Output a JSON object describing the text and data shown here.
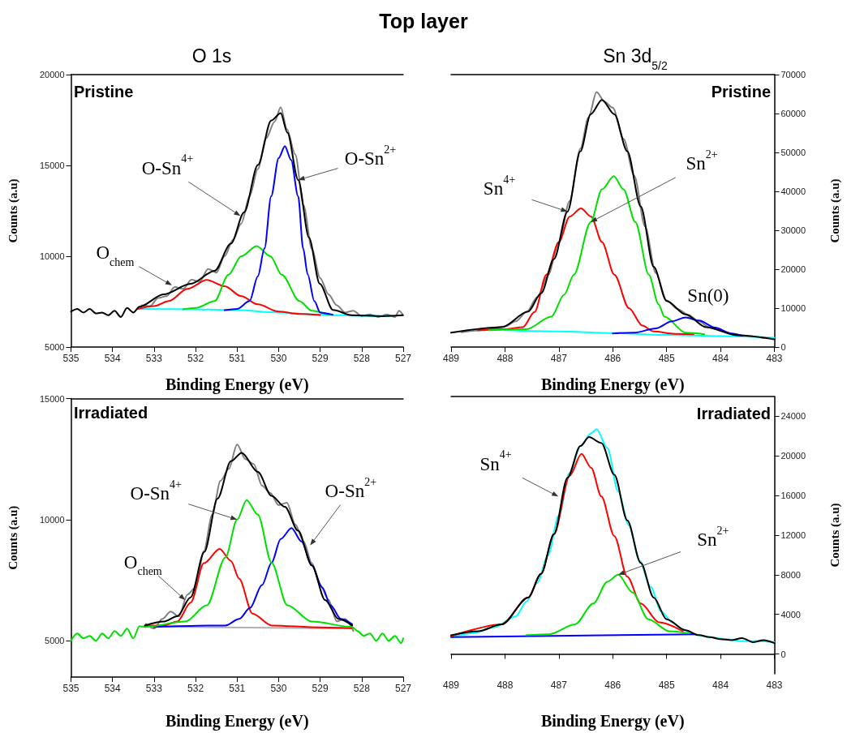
{
  "chart_data": [
    {
      "type": "line",
      "title": "Top layer",
      "subtitle": "O 1s",
      "xlabel": "Binding Energy (eV)",
      "ylabel": "Counts (a.u)",
      "marker": "none",
      "xlim": [
        535,
        527
      ],
      "xticks": [
        535,
        534,
        533,
        532,
        531,
        530,
        529,
        528,
        527
      ],
      "ylim": [
        5000,
        20000
      ],
      "yticks": [
        5000,
        10000,
        15000,
        20000
      ],
      "annotations": [
        "Pristine",
        {
          "text": "O$_{chem}$",
          "x": 532.57,
          "y": 8400
        },
        {
          "text": "O-Sn$^{4+}$",
          "x": 530.92,
          "y": 12220
        },
        {
          "text": "O-Sn$^{2+}$",
          "x": 529.53,
          "y": 14200
        }
      ],
      "series": [
        {
          "color": "#808080",
          "x": [
            533.3,
            533.1,
            532.9,
            532.7,
            532.5,
            532.3,
            532.1,
            531.9,
            531.7,
            531.5,
            531.3,
            531.1,
            530.9,
            530.7,
            530.5,
            530.3,
            530.1,
            529.95,
            529.8,
            529.6,
            529.4,
            529.2,
            529,
            528.8,
            528.6,
            528.4,
            528.2,
            528,
            527.8,
            527.6,
            527.4,
            527.2,
            527.1,
            527
          ],
          "values": [
            7300,
            7250,
            7700,
            7800,
            8300,
            8200,
            8700,
            8600,
            9300,
            9100,
            10000,
            10900,
            11800,
            13300,
            14800,
            16500,
            17400,
            18200,
            17000,
            15600,
            12800,
            10400,
            8800,
            7900,
            7300,
            6900,
            7000,
            6700,
            6800,
            6650,
            6800,
            6650,
            7000,
            6750
          ]
        },
        {
          "color": "#00ffff",
          "x": [
            533.4,
            532,
            531,
            530,
            529,
            528,
            527.3
          ],
          "values": [
            7100,
            7080,
            7030,
            6900,
            6780,
            6720,
            6700
          ]
        },
        {
          "color": "#ff0000",
          "x": [
            533.4,
            533,
            532.64,
            532.2,
            531.73,
            531.3,
            530.9,
            530.5,
            530,
            529.5,
            529
          ],
          "values": [
            7100,
            7250,
            7530,
            8200,
            8690,
            8350,
            7800,
            7350,
            6950,
            6820,
            6760
          ]
        },
        {
          "color": "#00e000",
          "x": [
            532.3,
            532,
            531.54,
            531.21,
            530.9,
            530.53,
            530.2,
            529.92,
            529.5,
            529.2,
            528.8
          ],
          "values": [
            7080,
            7150,
            7530,
            8970,
            10000,
            10560,
            10000,
            8970,
            7530,
            7000,
            6780
          ]
        },
        {
          "color": "#0000ff",
          "x": [
            531.3,
            531,
            530.7,
            530.5,
            530.34,
            530.18,
            530,
            529.85,
            529.7,
            529.53,
            529.41,
            529.3,
            529.14,
            529,
            528.7
          ],
          "values": [
            7030,
            7100,
            7530,
            8900,
            10430,
            13300,
            15400,
            16060,
            15300,
            13300,
            10430,
            9000,
            7530,
            6900,
            6780
          ]
        },
        {
          "color": "#000000",
          "x": [
            535,
            534.85,
            534.7,
            534.55,
            534.4,
            534.25,
            534.1,
            533.95,
            533.8,
            533.65,
            533.5,
            533.35,
            532.77,
            532.12,
            531.54,
            531.15,
            530.83,
            530.5,
            530.18,
            529.95,
            529.79,
            529.53,
            529.27,
            529.01,
            528.69,
            528.24,
            527.5,
            527.01
          ],
          "values": [
            6950,
            7100,
            6900,
            7100,
            6850,
            6900,
            6750,
            7000,
            6650,
            7150,
            6900,
            7220,
            7900,
            8480,
            9200,
            10690,
            12420,
            15020,
            17470,
            17880,
            16810,
            14200,
            11030,
            8480,
            7040,
            6750,
            6700,
            6750
          ]
        }
      ]
    },
    {
      "type": "line",
      "subtitle": "Sn 3d$_{5/2}$",
      "xlabel": "Binding Energy (eV)",
      "ylabel": "Counts (a.u)",
      "marker": "none",
      "xlim": [
        489,
        483
      ],
      "xticks": [
        489,
        488,
        487,
        486,
        485,
        484,
        483
      ],
      "ylim": [
        0,
        70000
      ],
      "yticks": [
        0,
        10000,
        20000,
        30000,
        40000,
        50000,
        60000,
        70000
      ],
      "annotations": [
        "Pristine",
        {
          "text": "Sn$^{4+}$",
          "x": 486.84,
          "y": 34800
        },
        {
          "text": "Sn$^{2+}$",
          "x": 486.41,
          "y": 32100
        },
        {
          "text": "Sn(0)",
          "x": 484.65,
          "y": 7600
        }
      ],
      "series": [
        {
          "color": "#808080",
          "x": [
            488.8,
            488.4,
            488,
            487.8,
            487.6,
            487.4,
            487.2,
            487,
            486.8,
            486.6,
            486.45,
            486.3,
            486.15,
            486,
            485.8,
            485.6,
            485.4,
            485.2,
            485,
            484.8,
            484.6,
            484.4,
            484.2,
            484,
            483.8,
            483.5,
            483.2
          ],
          "values": [
            3800,
            4300,
            5300,
            6600,
            9000,
            12800,
            18500,
            27000,
            37500,
            51000,
            59000,
            65500,
            63000,
            61500,
            53500,
            44000,
            31000,
            19000,
            12000,
            9800,
            8300,
            6600,
            5000,
            4200,
            3400,
            2800,
            2300
          ]
        },
        {
          "color": "#00ffff",
          "x": [
            488,
            487,
            486,
            485,
            484,
            483
          ],
          "values": [
            4300,
            4000,
            3600,
            3100,
            2800,
            2400
          ]
        },
        {
          "color": "#ff0000",
          "x": [
            488.5,
            488,
            487.67,
            487.45,
            487.23,
            487,
            486.8,
            486.59,
            486.4,
            486.2,
            485.97,
            485.7,
            485.45,
            485.24,
            484.85,
            484.5
          ],
          "values": [
            4300,
            4600,
            5100,
            9000,
            18600,
            27000,
            33500,
            35600,
            33500,
            27000,
            18600,
            10000,
            5500,
            4000,
            3400,
            3300
          ]
        },
        {
          "color": "#00e000",
          "x": [
            488.3,
            487.6,
            487.14,
            486.9,
            486.72,
            486.41,
            486.2,
            485.98,
            485.8,
            485.58,
            485.33,
            485.15,
            485.04,
            484.65,
            484.3
          ],
          "values": [
            4300,
            4600,
            7800,
            13500,
            18600,
            32100,
            40500,
            43900,
            40500,
            32100,
            18600,
            11000,
            7800,
            3700,
            3300
          ]
        },
        {
          "color": "#0000ff",
          "x": [
            486,
            485.6,
            485.2,
            484.9,
            484.65,
            484.4,
            484.1,
            483.8,
            483.6
          ],
          "values": [
            3500,
            3700,
            4800,
            6600,
            7600,
            6800,
            5000,
            3500,
            2900
          ]
        },
        {
          "color": "#000000",
          "x": [
            489,
            488.06,
            487.57,
            487.33,
            487.09,
            486.84,
            486.6,
            486.41,
            486.2,
            485.97,
            485.73,
            485.48,
            485.24,
            485,
            484.65,
            484.27,
            483.68,
            483
          ],
          "values": [
            3700,
            5100,
            9100,
            13800,
            22600,
            34800,
            50300,
            59800,
            63500,
            59800,
            50300,
            36100,
            20600,
            11800,
            8400,
            5100,
            3000,
            2000
          ]
        }
      ]
    },
    {
      "type": "line",
      "xlabel": "Binding Energy (eV)",
      "ylabel": "Counts (a.u)",
      "marker": "none",
      "xlim": [
        535,
        527
      ],
      "xticks": [
        535,
        534,
        533,
        532,
        531,
        530,
        529,
        528,
        527
      ],
      "ylim": [
        3500,
        15000
      ],
      "yticks": [
        5000,
        10000,
        15000
      ],
      "annotations": [
        "Irradiated",
        {
          "text": "O$_{chem}$",
          "x": 532.25,
          "y": 6680
        },
        {
          "text": "O-Sn$^{4+}$",
          "x": 531,
          "y": 10000
        },
        {
          "text": "O-Sn$^{2+}$",
          "x": 529.24,
          "y": 8940
        }
      ],
      "series": [
        {
          "color": "#808080",
          "x": [
            533.2,
            533,
            532.8,
            532.6,
            532.4,
            532.2,
            532,
            531.8,
            531.6,
            531.4,
            531.2,
            531,
            530.8,
            530.6,
            530.4,
            530.2,
            530,
            529.8,
            529.6,
            529.4,
            529.2,
            529,
            528.8,
            528.6,
            528.4,
            528.2
          ],
          "values": [
            5700,
            5500,
            5900,
            6200,
            6000,
            6900,
            7200,
            8700,
            10200,
            11600,
            12100,
            13100,
            12500,
            12300,
            11400,
            11100,
            10600,
            10700,
            9800,
            9100,
            8200,
            7300,
            6700,
            5800,
            5900,
            5400
          ]
        },
        {
          "color": "#b0b0b0",
          "x": [
            533.2,
            528.2
          ],
          "values": [
            5580,
            5500
          ]
        },
        {
          "color": "#ff0000",
          "x": [
            533.22,
            532.77,
            532.44,
            532.12,
            531.8,
            531.42,
            531.15,
            530.95,
            530.63,
            530.17,
            529,
            528.23
          ],
          "values": [
            5630,
            5630,
            5790,
            6570,
            8200,
            8790,
            8300,
            7560,
            6120,
            5630,
            5550,
            5520
          ]
        },
        {
          "color": "#0000ff",
          "x": [
            533,
            531.28,
            530.95,
            530.69,
            530.4,
            530.17,
            529.95,
            529.69,
            529.45,
            529.2,
            528.95,
            528.75,
            528.5,
            528.23
          ],
          "values": [
            5570,
            5630,
            5900,
            6350,
            7300,
            8220,
            9200,
            9650,
            9100,
            8110,
            7200,
            6460,
            5900,
            5680
          ]
        },
        {
          "color": "#00e000",
          "x": [
            535,
            534.85,
            534.7,
            534.55,
            534.4,
            534.25,
            534.1,
            533.95,
            533.8,
            533.65,
            533.5,
            533.35,
            533.22,
            532.25,
            531.73,
            531.28,
            531,
            530.77,
            530.5,
            530.17,
            529.79,
            529.2,
            528.23,
            528.1,
            527.95,
            527.8,
            527.65,
            527.5,
            527.35,
            527.2,
            527.05,
            527
          ],
          "values": [
            5000,
            5300,
            5100,
            5200,
            5000,
            5300,
            5100,
            5400,
            5200,
            5500,
            5100,
            5600,
            5570,
            5790,
            6460,
            8440,
            10000,
            10810,
            10200,
            8220,
            6460,
            5790,
            5570,
            5400,
            5200,
            5300,
            5000,
            5300,
            5000,
            5200,
            4900,
            5100
          ]
        },
        {
          "color": "#000000",
          "x": [
            533.22,
            532.77,
            532.44,
            532.12,
            531.79,
            531.47,
            531.15,
            530.89,
            530.5,
            530.17,
            529.85,
            529.53,
            529.2,
            528.88,
            528.56,
            528.23
          ],
          "values": [
            5630,
            5790,
            6010,
            6790,
            8660,
            10870,
            12410,
            12760,
            11970,
            10980,
            10530,
            9540,
            8110,
            6680,
            5900,
            5630
          ]
        }
      ]
    },
    {
      "type": "line",
      "xlabel": "Binding Energy (eV)",
      "ylabel": "Counts (a.u)",
      "marker": "none",
      "xlim": [
        489,
        483
      ],
      "xticks": [
        489,
        488,
        487,
        486,
        485,
        484,
        483
      ],
      "ylim": [
        -2000,
        26000
      ],
      "yticks": [
        0,
        4000,
        8000,
        12000,
        16000,
        20000,
        24000
      ],
      "annotations": [
        "Irradiated",
        {
          "text": "Sn$^{4+}$",
          "x": 487.01,
          "y": 15900
        },
        {
          "text": "Sn$^{2+}$",
          "x": 485.9,
          "y": 8000
        }
      ],
      "series": [
        {
          "color": "#00ffff",
          "x": [
            489,
            488.6,
            488.2,
            487.8,
            487.6,
            487.4,
            487.2,
            487,
            486.8,
            486.6,
            486.4,
            486.3,
            486.1,
            485.9,
            485.7,
            485.5,
            485.3,
            485.1,
            484.9,
            484.7,
            484.5,
            484.2,
            483.9,
            483.6,
            483.3,
            483
          ],
          "values": [
            1700,
            2100,
            2700,
            3800,
            5300,
            7200,
            10000,
            14000,
            18300,
            21000,
            22300,
            22700,
            20800,
            16400,
            13000,
            9400,
            6800,
            4300,
            3200,
            2500,
            2000,
            1700,
            1500,
            1300,
            1300,
            1200
          ]
        },
        {
          "color": "#0000ff",
          "x": [
            489,
            484.46
          ],
          "values": [
            1700,
            2000
          ]
        },
        {
          "color": "#ff0000",
          "x": [
            489,
            488.06,
            487.57,
            487.33,
            487.09,
            486.8,
            486.58,
            486.4,
            486.21,
            485.97,
            485.73,
            485.48,
            485.14,
            484.7
          ],
          "values": [
            1800,
            3000,
            5700,
            8100,
            12100,
            18000,
            20200,
            18800,
            15900,
            11900,
            7800,
            5100,
            3200,
            2300
          ]
        },
        {
          "color": "#00e000",
          "x": [
            487.6,
            487.18,
            486.7,
            486.36,
            486.1,
            485.9,
            485.63,
            485.34,
            484.95,
            484.6
          ],
          "values": [
            1900,
            2000,
            3000,
            5100,
            7300,
            8000,
            6200,
            3500,
            2300,
            2100
          ]
        },
        {
          "color": "#000000",
          "x": [
            489,
            488.5,
            488.06,
            487.57,
            487.33,
            487.09,
            486.84,
            486.6,
            486.44,
            486.21,
            485.97,
            485.73,
            485.48,
            485.24,
            485,
            484.65,
            484.4,
            484.2,
            484,
            483.8,
            483.6,
            483.4,
            483.2,
            483
          ],
          "values": [
            1900,
            2300,
            3000,
            5700,
            8100,
            12100,
            17800,
            21000,
            21900,
            21300,
            18100,
            13500,
            9200,
            5700,
            3500,
            2400,
            1900,
            1700,
            1500,
            1400,
            1600,
            1200,
            1400,
            1100
          ]
        }
      ]
    }
  ]
}
